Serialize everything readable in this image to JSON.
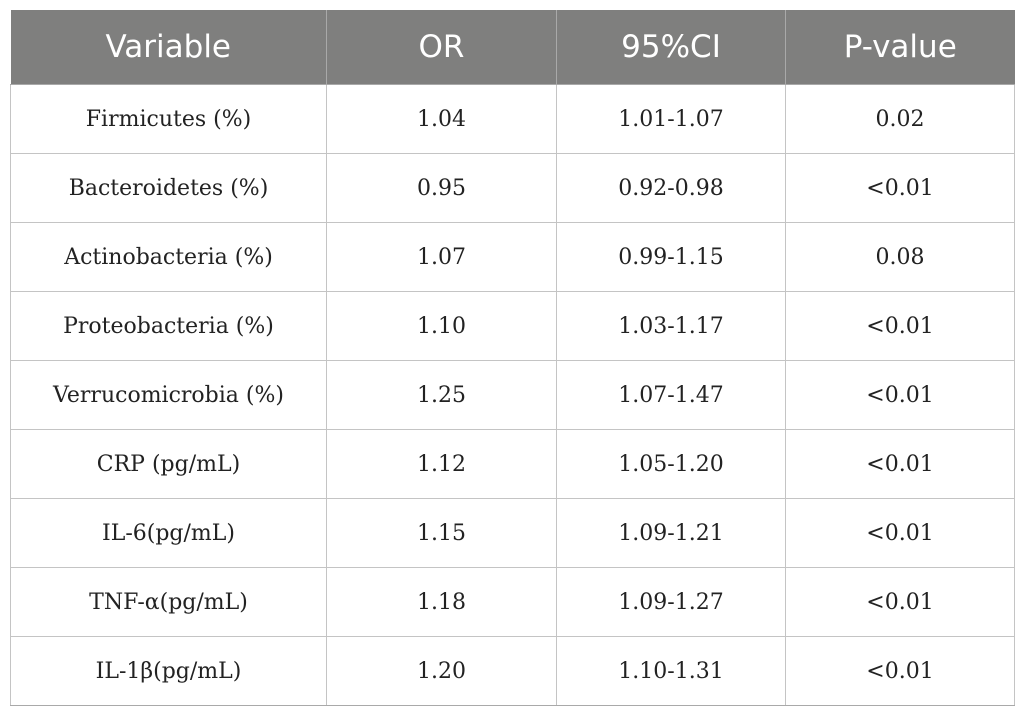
{
  "table": {
    "headers": [
      "Variable",
      "OR",
      "95%CI",
      "P-value"
    ],
    "rows": [
      [
        "Firmicutes (%)",
        "1.04",
        "1.01-1.07",
        "0.02"
      ],
      [
        "Bacteroidetes (%)",
        "0.95",
        "0.92-0.98",
        "<0.01"
      ],
      [
        "Actinobacteria (%)",
        "1.07",
        "0.99-1.15",
        "0.08"
      ],
      [
        "Proteobacteria (%)",
        "1.10",
        "1.03-1.17",
        "<0.01"
      ],
      [
        "Verrucomicrobia (%)",
        "1.25",
        "1.07-1.47",
        "<0.01"
      ],
      [
        "CRP (pg/mL)",
        "1.12",
        "1.05-1.20",
        "<0.01"
      ],
      [
        "IL-6(pg/mL)",
        "1.15",
        "1.09-1.21",
        "<0.01"
      ],
      [
        "TNF-α(pg/mL)",
        "1.18",
        "1.09-1.27",
        "<0.01"
      ],
      [
        "IL-1β(pg/mL)",
        "1.20",
        "1.10-1.31",
        "<0.01"
      ]
    ]
  },
  "colors": {
    "header_background": "#7f7f7e",
    "header_text": "#ffffff",
    "border": "#c4c4c4"
  }
}
